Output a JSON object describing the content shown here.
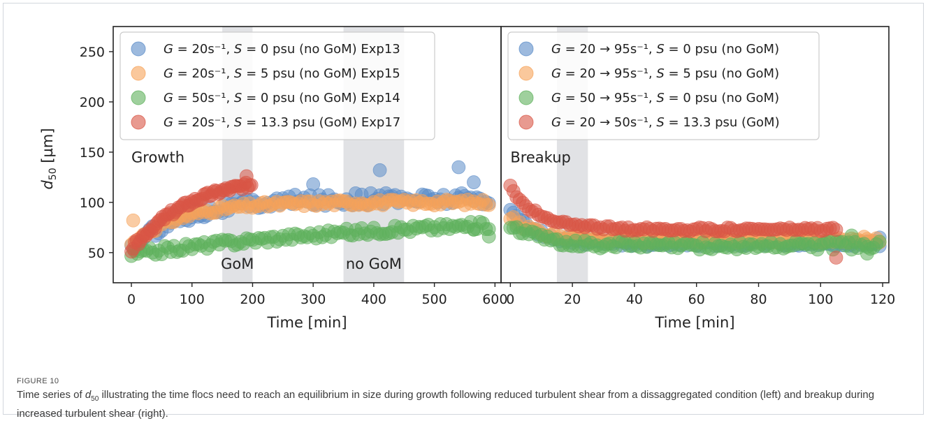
{
  "figure": {
    "label": "FIGURE 10",
    "caption_before": "Time series of ",
    "caption_var": "d",
    "caption_sub": "50",
    "caption_after": " illustrating the time flocs need to reach an equilibrium in size during growth following reduced turbulent shear from a dissaggregated condition (left) and breakup during increased turbulent shear (right)."
  },
  "colors": {
    "blue": "#5b8cc8",
    "orange": "#f6a35a",
    "green": "#5fb15c",
    "red": "#d95646",
    "shade": "#c8cbd0"
  },
  "chart_data": [
    {
      "type": "scatter",
      "panel": "left",
      "ylabel": "d50 [µm]",
      "xlabel": "Time [min]",
      "xlim": [
        -30,
        610
      ],
      "ylim": [
        20,
        275
      ],
      "xticks": [
        0,
        100,
        200,
        300,
        400,
        500,
        600
      ],
      "yticks": [
        50,
        100,
        150,
        200,
        250
      ],
      "grid": false,
      "legend_position": "top-left",
      "annotations": [
        {
          "text": "Growth",
          "x": 0,
          "y": 140
        },
        {
          "text": "GoM",
          "x": 175,
          "y": 34
        },
        {
          "text": "no GoM",
          "x": 400,
          "y": 34
        }
      ],
      "shaded_regions": [
        [
          150,
          200
        ],
        [
          350,
          450
        ]
      ],
      "series": [
        {
          "name": "G = 20s⁻¹, S = 0 psu (no GoM) Exp13",
          "color": "blue",
          "start": 55,
          "end": 104,
          "tau": 90,
          "dur": 590,
          "step": 5,
          "jitter": 6,
          "spikes": [
            [
              300,
              118
            ],
            [
              410,
              132
            ],
            [
              540,
              135
            ],
            [
              565,
              120
            ]
          ]
        },
        {
          "name": "G = 20s⁻¹, S = 5 psu (no GoM) Exp15",
          "color": "orange",
          "start": 58,
          "end": 100,
          "tau": 80,
          "dur": 590,
          "step": 5,
          "jitter": 3,
          "spikes": [
            [
              3,
              82
            ]
          ]
        },
        {
          "name": "G = 50s⁻¹, S = 0 psu (no GoM) Exp14",
          "color": "green",
          "start": 48,
          "end": 88,
          "tau": 450,
          "dur": 590,
          "step": 5,
          "jitter": 4,
          "spikes": [
            [
              590,
              66
            ],
            [
              565,
              73
            ]
          ]
        },
        {
          "name": "G = 20s⁻¹, S = 13.3 psu (GoM) Exp17",
          "color": "red",
          "start": 53,
          "end": 128,
          "tau": 100,
          "dur": 200,
          "step": 3,
          "jitter": 3,
          "spikes": [
            [
              190,
              126
            ]
          ]
        }
      ]
    },
    {
      "type": "scatter",
      "panel": "right",
      "xlabel": "Time [min]",
      "xlim": [
        -3,
        122
      ],
      "ylim": [
        20,
        275
      ],
      "xticks": [
        0,
        20,
        40,
        60,
        80,
        100,
        120
      ],
      "grid": false,
      "legend_position": "top-left",
      "annotations": [
        {
          "text": "Breakup",
          "x": 0,
          "y": 140
        }
      ],
      "shaded_regions": [
        [
          15,
          25
        ]
      ],
      "series": [
        {
          "name": "G = 20 → 95s⁻¹, S = 0 psu (no GoM)",
          "color": "blue",
          "start": 93,
          "end": 59,
          "tau": 8,
          "dur": 119,
          "step": 1,
          "jitter": 3,
          "spikes": [
            [
              119,
              65
            ]
          ]
        },
        {
          "name": "G = 20 → 95s⁻¹, S = 5 psu (no GoM)",
          "color": "orange",
          "start": 85,
          "end": 63,
          "tau": 8,
          "dur": 119,
          "step": 1,
          "jitter": 3,
          "spikes": []
        },
        {
          "name": "G = 50 → 95s⁻¹, S = 0 psu (no GoM)",
          "color": "green",
          "start": 78,
          "end": 57,
          "tau": 10,
          "dur": 119,
          "step": 1,
          "jitter": 4,
          "spikes": [
            [
              110,
              67
            ],
            [
              115,
              49
            ]
          ]
        },
        {
          "name": "G = 20 → 50s⁻¹, S = 13.3 psu (GoM)",
          "color": "red",
          "start": 115,
          "end": 73,
          "tau": 9,
          "dur": 105,
          "step": 1,
          "jitter": 2,
          "spikes": [
            [
              105,
              45
            ]
          ]
        }
      ]
    }
  ]
}
